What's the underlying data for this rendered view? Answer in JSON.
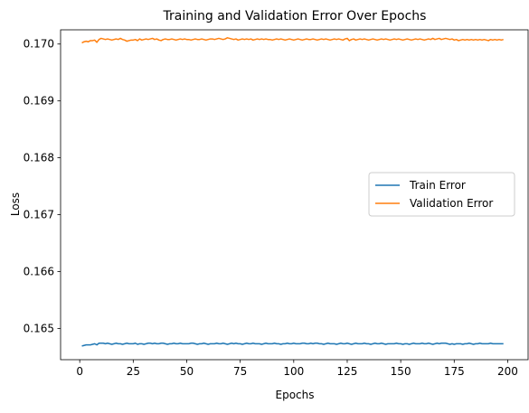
{
  "chart_data": {
    "type": "line",
    "title": "Training and Validation Error Over Epochs",
    "xlabel": "Epochs",
    "ylabel": "Loss",
    "xlim": [
      -8.95,
      209.95
    ],
    "ylim": [
      0.16445,
      0.17025
    ],
    "xticks": [
      0,
      25,
      50,
      75,
      100,
      125,
      150,
      175,
      200
    ],
    "xtick_labels": [
      "0",
      "25",
      "50",
      "75",
      "100",
      "125",
      "150",
      "175",
      "200"
    ],
    "yticks": [
      0.165,
      0.166,
      0.167,
      0.168,
      0.169,
      0.17
    ],
    "ytick_labels": [
      "0.165",
      "0.166",
      "0.167",
      "0.168",
      "0.169",
      "0.170"
    ],
    "grid": false,
    "legend_position": "center-right",
    "x": {
      "start": 1,
      "end": 200,
      "step": 1
    },
    "series": [
      {
        "name": "Train Error",
        "color": "#1f77b4",
        "values": [
          0.16469,
          0.1647,
          0.16471,
          0.16471,
          0.16471,
          0.16472,
          0.16473,
          0.16471,
          0.16474,
          0.16474,
          0.16474,
          0.16473,
          0.16474,
          0.16473,
          0.16472,
          0.16473,
          0.16474,
          0.16473,
          0.16473,
          0.16472,
          0.16473,
          0.16474,
          0.16473,
          0.16473,
          0.16473,
          0.16474,
          0.16472,
          0.16473,
          0.16473,
          0.16472,
          0.16473,
          0.16474,
          0.16474,
          0.16473,
          0.16474,
          0.16473,
          0.16473,
          0.16474,
          0.16474,
          0.16473,
          0.16472,
          0.16473,
          0.16473,
          0.16474,
          0.16473,
          0.16473,
          0.16474,
          0.16473,
          0.16473,
          0.16473,
          0.16473,
          0.16474,
          0.16474,
          0.16473,
          0.16472,
          0.16473,
          0.16473,
          0.16474,
          0.16473,
          0.16472,
          0.16473,
          0.16473,
          0.16473,
          0.16474,
          0.16473,
          0.16473,
          0.16474,
          0.16473,
          0.16472,
          0.16473,
          0.16474,
          0.16473,
          0.16474,
          0.16473,
          0.16473,
          0.16472,
          0.16473,
          0.16474,
          0.16473,
          0.16473,
          0.16474,
          0.16473,
          0.16473,
          0.16473,
          0.16472,
          0.16473,
          0.16474,
          0.16473,
          0.16473,
          0.16473,
          0.16474,
          0.16473,
          0.16473,
          0.16472,
          0.16473,
          0.16473,
          0.16474,
          0.16473,
          0.16473,
          0.16474,
          0.16473,
          0.16473,
          0.16473,
          0.16474,
          0.16474,
          0.16473,
          0.16473,
          0.16474,
          0.16473,
          0.16474,
          0.16474,
          0.16473,
          0.16473,
          0.16472,
          0.16473,
          0.16474,
          0.16473,
          0.16473,
          0.16473,
          0.16472,
          0.16473,
          0.16474,
          0.16473,
          0.16473,
          0.16474,
          0.16473,
          0.16472,
          0.16473,
          0.16474,
          0.16473,
          0.16473,
          0.16473,
          0.16474,
          0.16473,
          0.16473,
          0.16472,
          0.16473,
          0.16474,
          0.16473,
          0.16473,
          0.16474,
          0.16473,
          0.16472,
          0.16473,
          0.16473,
          0.16473,
          0.16473,
          0.16474,
          0.16473,
          0.16473,
          0.16472,
          0.16473,
          0.16473,
          0.16472,
          0.16473,
          0.16474,
          0.16473,
          0.16473,
          0.16473,
          0.16474,
          0.16473,
          0.16473,
          0.16474,
          0.16473,
          0.16472,
          0.16473,
          0.16474,
          0.16473,
          0.16474,
          0.16474,
          0.16474,
          0.16473,
          0.16472,
          0.16473,
          0.16472,
          0.16473,
          0.16473,
          0.16473,
          0.16472,
          0.16473,
          0.16473,
          0.16474,
          0.16473,
          0.16472,
          0.16473,
          0.16473,
          0.16474,
          0.16473,
          0.16473,
          0.16473,
          0.16473,
          0.16474,
          0.16473,
          0.16473,
          0.16473,
          0.16473,
          0.16473,
          0.16473
        ]
      },
      {
        "name": "Validation Error",
        "color": "#ff7f0e",
        "values": [
          0.17002,
          0.17004,
          0.17005,
          0.17004,
          0.17006,
          0.17006,
          0.17007,
          0.17003,
          0.17008,
          0.1701,
          0.17009,
          0.17008,
          0.17009,
          0.17008,
          0.17007,
          0.17008,
          0.17009,
          0.17008,
          0.1701,
          0.17008,
          0.17007,
          0.17005,
          0.17006,
          0.17007,
          0.17007,
          0.17008,
          0.17006,
          0.17009,
          0.17007,
          0.17008,
          0.17009,
          0.17008,
          0.17009,
          0.1701,
          0.17008,
          0.17009,
          0.17007,
          0.17006,
          0.17008,
          0.17009,
          0.17008,
          0.17008,
          0.17009,
          0.17008,
          0.17007,
          0.17008,
          0.17009,
          0.17008,
          0.17009,
          0.17008,
          0.17008,
          0.17007,
          0.17008,
          0.17009,
          0.17008,
          0.17008,
          0.17009,
          0.17008,
          0.17007,
          0.17008,
          0.17009,
          0.17009,
          0.17008,
          0.17009,
          0.1701,
          0.17009,
          0.17008,
          0.17009,
          0.17011,
          0.1701,
          0.17009,
          0.17008,
          0.17009,
          0.17007,
          0.17008,
          0.17009,
          0.17008,
          0.17009,
          0.17008,
          0.17009,
          0.17007,
          0.17008,
          0.17009,
          0.17008,
          0.17009,
          0.17008,
          0.17009,
          0.17008,
          0.17008,
          0.17007,
          0.17008,
          0.17009,
          0.17008,
          0.17009,
          0.17008,
          0.17007,
          0.17008,
          0.17009,
          0.17008,
          0.17007,
          0.17008,
          0.17009,
          0.17008,
          0.17007,
          0.17008,
          0.17009,
          0.17008,
          0.17008,
          0.17009,
          0.17008,
          0.17007,
          0.17008,
          0.17009,
          0.17008,
          0.17009,
          0.17008,
          0.17007,
          0.17008,
          0.17009,
          0.17008,
          0.17009,
          0.17008,
          0.17007,
          0.17009,
          0.1701,
          0.17006,
          0.17008,
          0.17009,
          0.17007,
          0.17008,
          0.17009,
          0.17008,
          0.17009,
          0.17008,
          0.17007,
          0.17008,
          0.17009,
          0.17008,
          0.17007,
          0.17008,
          0.17009,
          0.17008,
          0.17009,
          0.17008,
          0.17007,
          0.17008,
          0.17009,
          0.17008,
          0.17009,
          0.17008,
          0.17007,
          0.17008,
          0.17009,
          0.17008,
          0.17007,
          0.17008,
          0.17009,
          0.17008,
          0.17009,
          0.17008,
          0.17007,
          0.17008,
          0.17009,
          0.17008,
          0.1701,
          0.17008,
          0.17009,
          0.1701,
          0.17008,
          0.17009,
          0.1701,
          0.17009,
          0.17008,
          0.17009,
          0.17007,
          0.17008,
          0.17006,
          0.17007,
          0.17008,
          0.17007,
          0.17008,
          0.17007,
          0.17008,
          0.17007,
          0.17008,
          0.17007,
          0.17008,
          0.17007,
          0.17008,
          0.17007,
          0.17006,
          0.17008,
          0.17007,
          0.17008,
          0.17007,
          0.17008,
          0.17007,
          0.17008
        ]
      }
    ]
  }
}
